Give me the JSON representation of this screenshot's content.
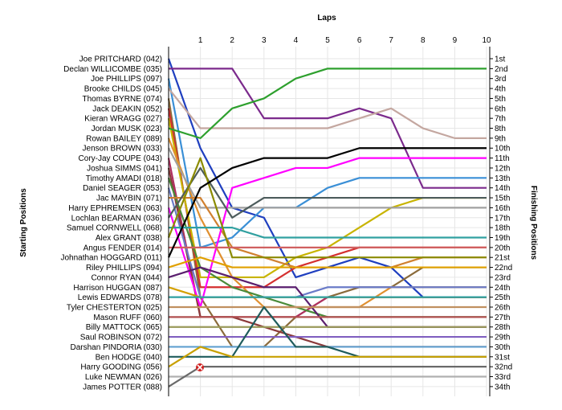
{
  "chart_data": {
    "type": "line",
    "title": "",
    "xlabel": "Laps",
    "ylabel_left": "Starting Positions",
    "ylabel_right": "Finishing Positions",
    "x": [
      0,
      1,
      2,
      3,
      4,
      5,
      6,
      7,
      8,
      9,
      10
    ],
    "x_tick_labels": [
      "1",
      "2",
      "3",
      "4",
      "5",
      "6",
      "7",
      "8",
      "9",
      "10"
    ],
    "ylim": [
      1,
      34
    ],
    "y_inverted": true,
    "grid": true,
    "starting_positions": [
      "Joe PRITCHARD (042)",
      "Declan WILLICOMBE (035)",
      "Joe PHILLIPS (097)",
      "Brooke CHILDS (045)",
      "Thomas BYRNE (074)",
      "Jack DEAKIN (052)",
      "Kieran WRAGG (027)",
      "Jordan MUSK (023)",
      "Rowan BAILEY (089)",
      "Jenson BROWN (033)",
      "Cory-Jay COUPE (043)",
      "Joshua SIMMS (041)",
      "Timothy AMADI (018)",
      "Daniel SEAGER (053)",
      "Jac MAYBIN (071)",
      "Harry EPHREMSEN (063)",
      "Lochlan BEARMAN (036)",
      "Samuel CORNWELL (068)",
      "Alex GRANT (038)",
      "Angus FENDER (014)",
      "Johnathan HOGGARD (011)",
      "Riley PHILLIPS (094)",
      "Connor RYAN (044)",
      "Harrison HUGGAN (087)",
      "Lewis EDWARDS (078)",
      "Tyler CHESTERTON (025)",
      "Mason RUFF (060)",
      "Billy MATTOCK (065)",
      "Saul ROBINSON (072)",
      "Darshan PINDORIA (030)",
      "Ben HODGE (040)",
      "Harry GOODING (056)",
      "Luke NEWMAN (026)",
      "James POTTER (088)"
    ],
    "finishing_positions": [
      "1st",
      "2nd",
      "3rd",
      "4th",
      "5th",
      "6th",
      "7th",
      "8th",
      "9th",
      "10th",
      "11th",
      "12th",
      "13th",
      "14th",
      "15th",
      "16th",
      "17th",
      "18th",
      "19th",
      "20th",
      "21st",
      "22nd",
      "23rd",
      "24th",
      "25th",
      "26th",
      "27th",
      "28th",
      "29th",
      "30th",
      "31st",
      "32nd",
      "33rd",
      "34th"
    ],
    "series": [
      {
        "color": "#1f3fbf",
        "values": [
          1,
          10,
          16,
          17,
          23,
          22,
          21,
          22,
          25,
          25,
          25
        ]
      },
      {
        "color": "#7b2a8c",
        "values": [
          2,
          2,
          2,
          7,
          7,
          7,
          6,
          7,
          14,
          14,
          14
        ]
      },
      {
        "color": "#3a8fd6",
        "values": [
          3,
          20,
          19,
          16,
          16,
          14,
          13,
          13,
          13,
          13,
          13
        ]
      },
      {
        "color": "#c4a7a0",
        "values": [
          4,
          8,
          8,
          8,
          8,
          8,
          7,
          6,
          8,
          9,
          9
        ]
      },
      {
        "color": "#8b6b3b",
        "values": [
          5,
          25,
          30,
          30,
          27,
          25,
          24,
          24,
          22,
          22,
          22
        ]
      },
      {
        "color": "#d43030",
        "values": [
          6,
          24,
          24,
          24,
          22,
          21,
          20,
          20,
          20,
          20,
          20
        ]
      },
      {
        "color": "#c8b400",
        "values": [
          7,
          23,
          23,
          23,
          21,
          20,
          18,
          16,
          15,
          15,
          15
        ]
      },
      {
        "color": "#2ea02e",
        "values": [
          8,
          9,
          6,
          5,
          3,
          2,
          2,
          2,
          2,
          2,
          2
        ]
      },
      {
        "color": "#e09030",
        "values": [
          9,
          17,
          23,
          26,
          26,
          26,
          26,
          24,
          24,
          24,
          24
        ]
      },
      {
        "color": "#a0a0a0",
        "values": [
          10,
          16,
          16,
          16,
          16,
          16,
          16,
          16,
          16,
          16,
          16
        ]
      },
      {
        "color": "#b03060",
        "values": [
          11,
          27,
          27,
          27,
          27,
          25,
          25,
          25,
          25,
          25,
          25
        ]
      },
      {
        "color": "#8b3a3a",
        "values": [
          12,
          27,
          27,
          28,
          29,
          30,
          30,
          30,
          30,
          30,
          30
        ]
      },
      {
        "color": "#4a8b3a",
        "values": [
          13,
          22,
          24,
          25,
          26,
          27,
          27,
          27,
          27,
          27,
          27
        ]
      },
      {
        "color": "#6a7bc8",
        "values": [
          14,
          25,
          25,
          25,
          25,
          24,
          24,
          24,
          24,
          24,
          24
        ]
      },
      {
        "color": "#d08030",
        "values": [
          15,
          15,
          20,
          21,
          22,
          22,
          22,
          22,
          21,
          21,
          21
        ]
      },
      {
        "color": "#ff00ff",
        "values": [
          16,
          26,
          14,
          13,
          12,
          12,
          11,
          11,
          11,
          11,
          11
        ]
      },
      {
        "color": "#4d5c5c",
        "values": [
          17,
          12,
          17,
          15,
          15,
          15,
          15,
          15,
          15,
          15,
          15
        ]
      },
      {
        "color": "#30a0a0",
        "values": [
          18,
          18,
          18,
          19,
          19,
          19,
          19,
          19,
          19,
          19,
          19
        ]
      },
      {
        "color": "#8b8b00",
        "values": [
          19,
          11,
          21,
          21,
          21,
          21,
          21,
          21,
          21,
          21,
          21
        ]
      },
      {
        "color": "#d06060",
        "values": [
          20,
          20,
          20,
          20,
          20,
          20,
          20,
          20,
          20,
          20,
          20
        ]
      },
      {
        "color": "#000000",
        "values": [
          21,
          14,
          12,
          11,
          11,
          11,
          10,
          10,
          10,
          10,
          10
        ]
      },
      {
        "color": "#e0a000",
        "values": [
          22,
          21,
          22,
          22,
          22,
          22,
          22,
          22,
          22,
          22,
          22
        ]
      },
      {
        "color": "#5a1e6e",
        "values": [
          23,
          22,
          23,
          24,
          24,
          28,
          28,
          28,
          28,
          28,
          28
        ]
      },
      {
        "color": "#d4a000",
        "values": [
          24,
          25,
          25,
          25,
          25,
          25,
          25,
          25,
          25,
          25,
          25
        ]
      },
      {
        "color": "#2fa0a0",
        "values": [
          25,
          25,
          25,
          25,
          25,
          25,
          25,
          25,
          25,
          25,
          25
        ]
      },
      {
        "color": "#c09060",
        "values": [
          26,
          26,
          26,
          26,
          26,
          26,
          26,
          26,
          26,
          26,
          26
        ]
      },
      {
        "color": "#b05050",
        "values": [
          27,
          27,
          27,
          27,
          27,
          27,
          27,
          27,
          27,
          27,
          27
        ]
      },
      {
        "color": "#9a9a5a",
        "values": [
          28,
          28,
          28,
          28,
          28,
          28,
          28,
          28,
          28,
          28,
          28
        ]
      },
      {
        "color": "#8060c0",
        "values": [
          29,
          29,
          29,
          29,
          29,
          29,
          29,
          29,
          29,
          29,
          29
        ]
      },
      {
        "color": "#60a0d0",
        "values": [
          30,
          30,
          30,
          30,
          30,
          30,
          30,
          30,
          30,
          30,
          30
        ]
      },
      {
        "color": "#1f5c5c",
        "values": [
          31,
          31,
          31,
          26,
          30,
          30,
          31,
          31,
          31,
          31,
          31
        ]
      },
      {
        "color": "#c8a000",
        "values": [
          32,
          30,
          31,
          31,
          31,
          31,
          31,
          31,
          31,
          31,
          31
        ]
      },
      {
        "color": "#b0b0b0",
        "values": [
          33,
          33,
          33,
          33,
          33,
          33,
          33,
          33,
          33,
          33,
          33
        ]
      },
      {
        "color": "#6a6a6a",
        "values": [
          34,
          32,
          32,
          32,
          32,
          32,
          32,
          32,
          32,
          32,
          32
        ]
      }
    ]
  }
}
